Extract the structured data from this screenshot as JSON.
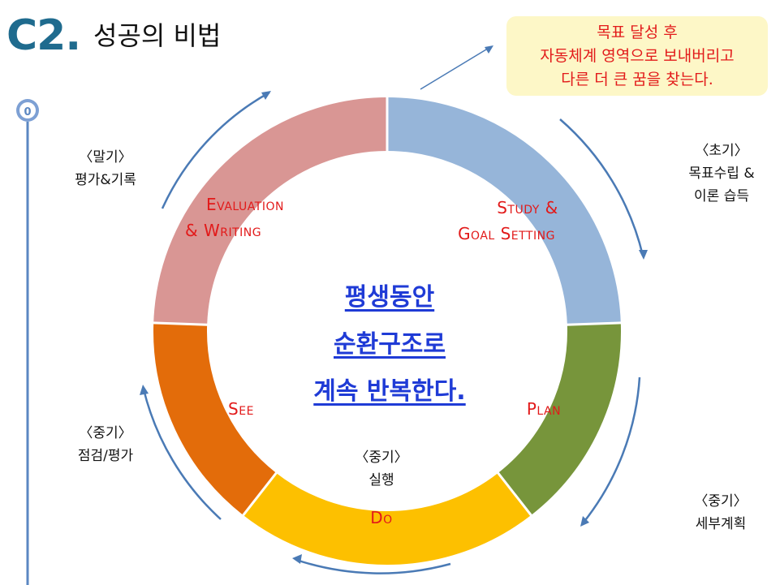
{
  "header": {
    "code": "C2.",
    "title": "성공의 비법"
  },
  "timeline": {
    "marker_label": "0"
  },
  "note": {
    "lines": [
      "목표 달성 후",
      "자동체계 영역으로 보내버리고",
      "다른 더 큰 꿈을 찾는다."
    ]
  },
  "center": {
    "lines": [
      "평생동안",
      "순환구조로",
      "계속 반복한다."
    ]
  },
  "phases": {
    "study": {
      "lines": [
        "Study &",
        "Goal Setting"
      ]
    },
    "evaluation": {
      "lines": [
        "Evaluation",
        "& Writing"
      ]
    },
    "plan": {
      "label": "Plan"
    },
    "see": {
      "label": "See"
    },
    "do": {
      "label": "Do"
    }
  },
  "stages": {
    "early": {
      "tag": "〈초기〉",
      "lines": [
        "목표수립 &",
        "이론 습득"
      ]
    },
    "late": {
      "tag": "〈말기〉",
      "desc": "평가&기록"
    },
    "mid_review": {
      "tag": "〈중기〉",
      "desc": "점검/평가"
    },
    "mid_do": {
      "tag": "〈중기〉",
      "desc": "실행"
    },
    "mid_plan": {
      "tag": "〈중기〉",
      "desc": "세부계획"
    }
  },
  "colors": {
    "study": "#96b5d9",
    "plan": "#77953b",
    "do": "#fdc000",
    "see": "#e36c0a",
    "evaluation": "#d99694",
    "arrow": "#4a7ab5",
    "title": "#1f6b8e",
    "phase_text": "#e21a1a",
    "center_text": "#1f3bd6",
    "note_bg": "#fdf7c7"
  }
}
